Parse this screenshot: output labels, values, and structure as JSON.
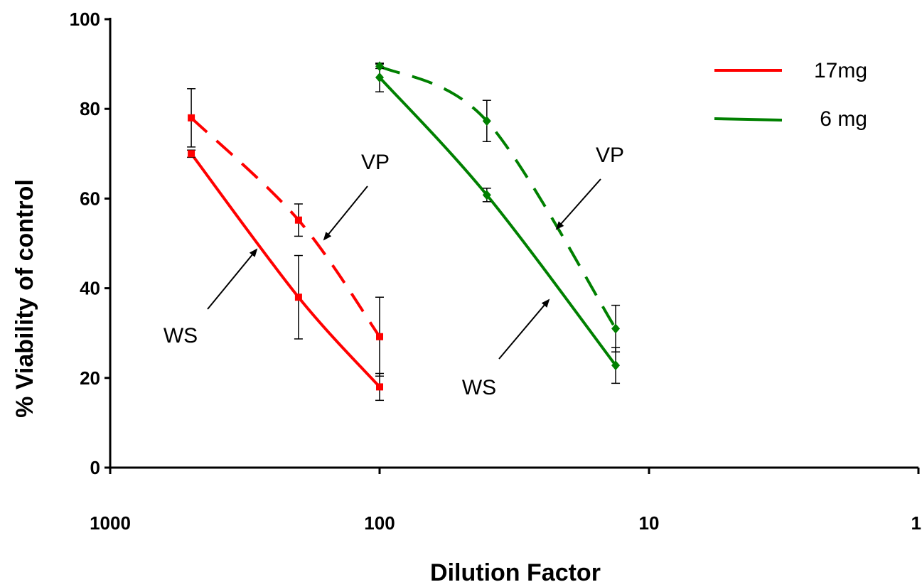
{
  "chart_data": {
    "type": "line",
    "title": "",
    "xlabel": "Dilution Factor",
    "ylabel": "% Viability of control",
    "x_scale": "log",
    "x_reversed": true,
    "xlim": [
      1000,
      1
    ],
    "ylim": [
      0,
      100
    ],
    "x_ticks": [
      "1000",
      "100",
      "10",
      "1"
    ],
    "y_ticks": [
      "0",
      "20",
      "40",
      "60",
      "80",
      "100"
    ],
    "grid": false,
    "legend_position": "top-right",
    "legend": [
      {
        "label": "17mg",
        "color": "#ff0000"
      },
      {
        "label": " 6 mg",
        "color": "#008000"
      }
    ],
    "series": [
      {
        "group": "17mg",
        "method": "WS",
        "color": "#ff0000",
        "dashed": false,
        "marker": "square",
        "x": [
          500,
          200,
          100
        ],
        "y": [
          70,
          38,
          18
        ],
        "error": [
          0.8,
          9.3,
          3.0
        ]
      },
      {
        "group": "17mg",
        "method": "VP",
        "color": "#ff0000",
        "dashed": true,
        "marker": "square",
        "x": [
          500,
          200,
          100
        ],
        "y": [
          78,
          55.2,
          29.2
        ],
        "error": [
          6.5,
          3.6,
          8.8
        ]
      },
      {
        "group": "6 mg",
        "method": "WS",
        "color": "#008000",
        "dashed": false,
        "marker": "diamond",
        "x": [
          100,
          40,
          13.3
        ],
        "y": [
          87,
          60.8,
          22.8
        ],
        "error": [
          3.2,
          1.5,
          4.0
        ]
      },
      {
        "group": "6 mg",
        "method": "VP",
        "color": "#008000",
        "dashed": true,
        "marker": "diamond",
        "x": [
          100,
          40,
          13.3
        ],
        "y": [
          89.5,
          77.3,
          31
        ],
        "error": [
          0.5,
          4.6,
          5.2
        ]
      }
    ],
    "annotations": [
      {
        "text": "VP",
        "target_series": 1
      },
      {
        "text": "WS",
        "target_series": 0
      },
      {
        "text": "VP",
        "target_series": 3
      },
      {
        "text": "WS",
        "target_series": 2
      }
    ]
  }
}
